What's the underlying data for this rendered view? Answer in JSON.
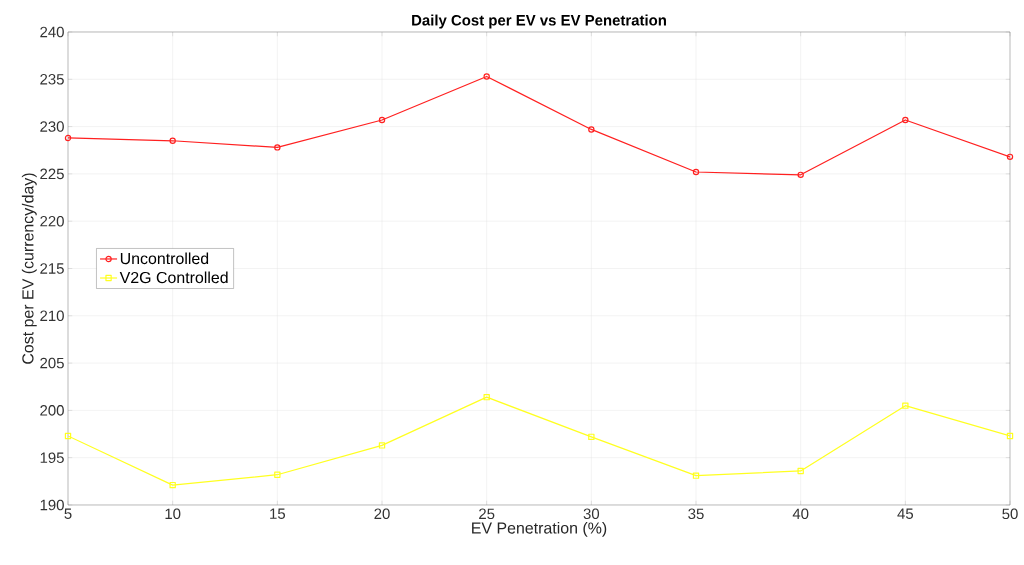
{
  "chart_data": {
    "type": "line",
    "title": "Daily Cost per EV vs EV Penetration",
    "xlabel": "EV Penetration (%)",
    "ylabel": "Cost per EV (currency/day)",
    "x": [
      5,
      10,
      15,
      20,
      25,
      30,
      35,
      40,
      45,
      50
    ],
    "series": [
      {
        "name": "Uncontrolled",
        "color": "#ff2020",
        "marker": "circle",
        "values": [
          228.8,
          228.5,
          227.8,
          230.7,
          235.3,
          229.7,
          225.2,
          224.9,
          230.7,
          226.8
        ]
      },
      {
        "name": "V2G Controlled",
        "color": "#ffff20",
        "marker": "square",
        "values": [
          197.3,
          192.1,
          193.2,
          196.3,
          201.4,
          197.2,
          193.1,
          193.6,
          200.5,
          197.3
        ]
      }
    ],
    "xlim": [
      5,
      50
    ],
    "ylim": [
      190,
      240
    ],
    "xticks": [
      5,
      10,
      15,
      20,
      25,
      30,
      35,
      40,
      45,
      50
    ],
    "yticks": [
      190,
      195,
      200,
      205,
      210,
      215,
      220,
      225,
      230,
      235,
      240
    ],
    "grid": true,
    "legend": "left",
    "line_style": "solid"
  }
}
